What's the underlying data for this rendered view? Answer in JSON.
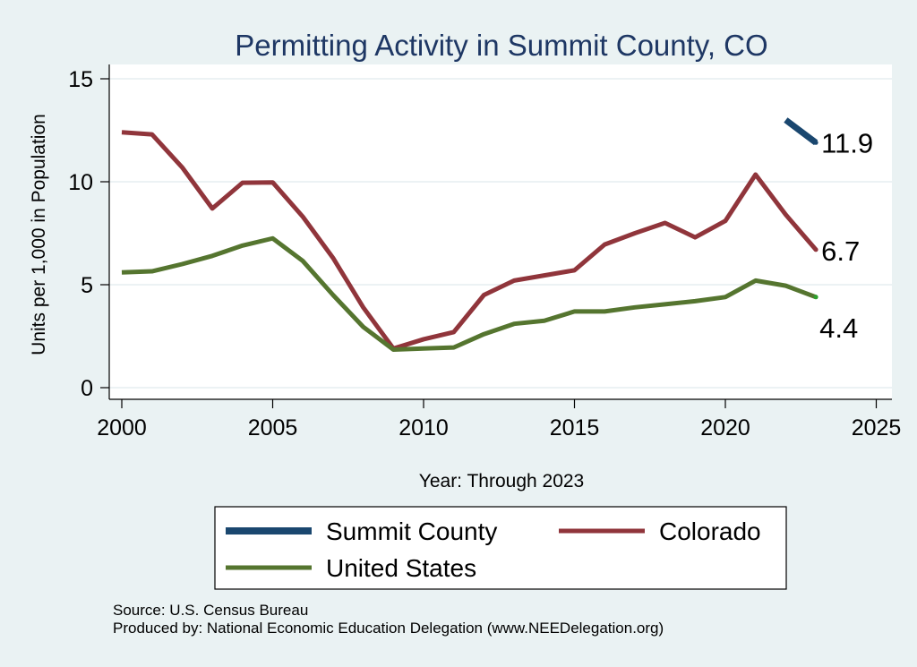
{
  "chart_data": {
    "type": "line",
    "title": "Permitting Activity in Summit County, CO",
    "xlabel": "Year: Through 2023",
    "ylabel": "Units per 1,000 in Population",
    "xlim": [
      2000,
      2025
    ],
    "ylim": [
      0,
      15
    ],
    "xticks": [
      2000,
      2005,
      2010,
      2015,
      2020,
      2025
    ],
    "yticks": [
      0,
      5,
      10,
      15
    ],
    "grid": true,
    "legend_position": "bottom",
    "series": [
      {
        "name": "Summit County",
        "color": "#1a476f",
        "x": [
          2022,
          2023
        ],
        "y": [
          13.0,
          11.9
        ],
        "end_label": "11.9"
      },
      {
        "name": "Colorado",
        "color": "#90353b",
        "x": [
          2000,
          2001,
          2002,
          2003,
          2004,
          2005,
          2006,
          2007,
          2008,
          2009,
          2010,
          2011,
          2012,
          2013,
          2014,
          2015,
          2016,
          2017,
          2018,
          2019,
          2020,
          2021,
          2022,
          2023
        ],
        "y": [
          12.4,
          12.3,
          10.7,
          8.7,
          9.95,
          9.97,
          8.3,
          6.3,
          3.9,
          1.9,
          2.35,
          2.7,
          4.5,
          5.2,
          5.45,
          5.7,
          6.95,
          7.5,
          8.0,
          7.3,
          8.1,
          10.35,
          8.4,
          6.7
        ],
        "end_label": "6.7"
      },
      {
        "name": "United States",
        "color": "#55752f",
        "x": [
          2000,
          2001,
          2002,
          2003,
          2004,
          2005,
          2006,
          2007,
          2008,
          2009,
          2010,
          2011,
          2012,
          2013,
          2014,
          2015,
          2016,
          2017,
          2018,
          2019,
          2020,
          2021,
          2022,
          2023
        ],
        "y": [
          5.6,
          5.65,
          6.0,
          6.4,
          6.9,
          7.25,
          6.15,
          4.5,
          2.95,
          1.85,
          1.9,
          1.95,
          2.6,
          3.1,
          3.25,
          3.7,
          3.7,
          3.9,
          4.05,
          4.2,
          4.4,
          5.2,
          4.95,
          4.4
        ],
        "end_label": "4.4"
      }
    ]
  },
  "footer": {
    "source": "Source: U.S. Census Bureau",
    "produced_by": "Produced by: National Economic Education Delegation (www.NEEDelegation.org)"
  }
}
